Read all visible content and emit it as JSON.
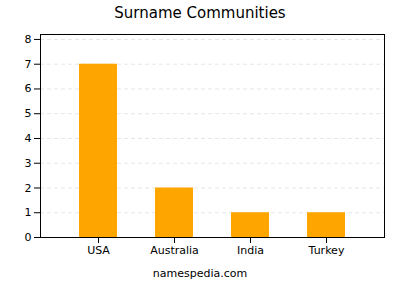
{
  "chart_data": {
    "type": "bar",
    "title": "Surname Communities",
    "categories": [
      "USA",
      "Australia",
      "India",
      "Turkey"
    ],
    "values": [
      7,
      2,
      1,
      1
    ],
    "color": "#FFA500",
    "ylim": [
      0,
      8.2
    ],
    "yticks": [
      0,
      1,
      2,
      3,
      4,
      5,
      6,
      7,
      8
    ],
    "grid": true,
    "caption": "namespedia.com"
  }
}
